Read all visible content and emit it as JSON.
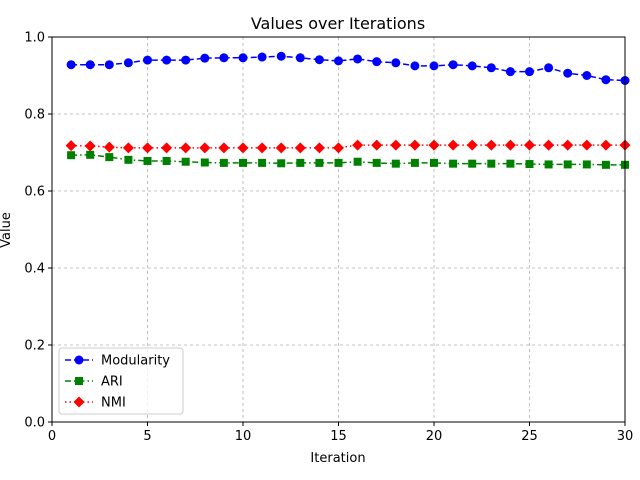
{
  "chart_data": {
    "type": "line",
    "title": "Values over Iterations",
    "xlabel": "Iteration",
    "ylabel": "Value",
    "xlim": [
      0,
      30
    ],
    "ylim": [
      0.0,
      1.0
    ],
    "xticks": [
      "0",
      "5",
      "10",
      "15",
      "20",
      "25",
      "30"
    ],
    "yticks": [
      "0.0",
      "0.2",
      "0.4",
      "0.6",
      "0.8",
      "1.0"
    ],
    "grid": true,
    "legend_position": "lower-left",
    "x": [
      1,
      2,
      3,
      4,
      5,
      6,
      7,
      8,
      9,
      10,
      11,
      12,
      13,
      14,
      15,
      16,
      17,
      18,
      19,
      20,
      21,
      22,
      23,
      24,
      25,
      26,
      27,
      28,
      29,
      30
    ],
    "series": [
      {
        "name": "Modularity",
        "color": "#0000ff",
        "marker": "circle",
        "linestyle": "dashed",
        "values": [
          0.928,
          0.928,
          0.928,
          0.933,
          0.94,
          0.94,
          0.94,
          0.945,
          0.946,
          0.946,
          0.948,
          0.95,
          0.946,
          0.941,
          0.938,
          0.943,
          0.936,
          0.933,
          0.925,
          0.925,
          0.928,
          0.925,
          0.92,
          0.91,
          0.91,
          0.92,
          0.906,
          0.9,
          0.889,
          0.887
        ]
      },
      {
        "name": "ARI",
        "color": "#008000",
        "marker": "square",
        "linestyle": "dashdot",
        "values": [
          0.693,
          0.694,
          0.688,
          0.681,
          0.678,
          0.678,
          0.676,
          0.674,
          0.673,
          0.673,
          0.673,
          0.672,
          0.673,
          0.673,
          0.673,
          0.676,
          0.673,
          0.671,
          0.673,
          0.673,
          0.671,
          0.671,
          0.671,
          0.671,
          0.67,
          0.669,
          0.669,
          0.669,
          0.668,
          0.668
        ]
      },
      {
        "name": "NMI",
        "color": "#ff0000",
        "marker": "diamond",
        "linestyle": "dotted",
        "values": [
          0.718,
          0.717,
          0.714,
          0.712,
          0.712,
          0.712,
          0.712,
          0.712,
          0.712,
          0.712,
          0.712,
          0.712,
          0.712,
          0.712,
          0.712,
          0.719,
          0.719,
          0.719,
          0.719,
          0.719,
          0.719,
          0.719,
          0.719,
          0.719,
          0.719,
          0.719,
          0.719,
          0.719,
          0.719,
          0.719
        ]
      }
    ]
  }
}
